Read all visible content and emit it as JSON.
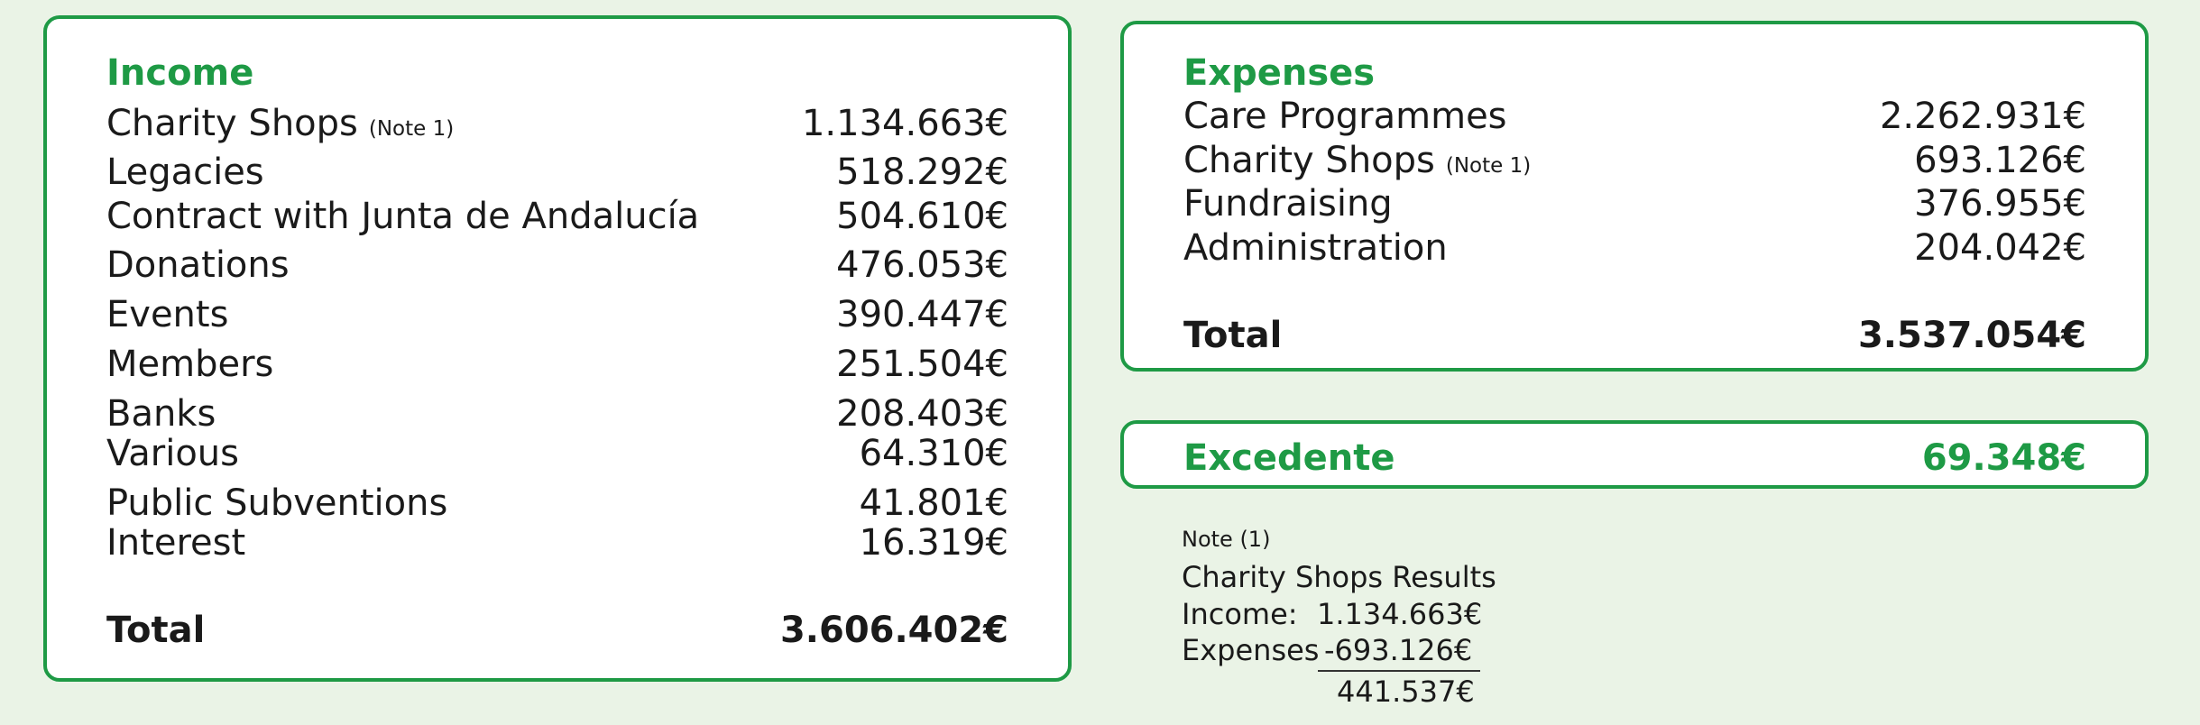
{
  "income": {
    "heading": "Income",
    "items": [
      {
        "label": "Charity Shops",
        "note": "(Note 1)",
        "value": "1.134.663€"
      },
      {
        "label": "Legacies",
        "value": "518.292€"
      },
      {
        "label": "Contract with Junta de Andalucía",
        "value": "504.610€"
      },
      {
        "label": "Donations",
        "value": "476.053€"
      },
      {
        "label": "Events",
        "value": "390.447€"
      },
      {
        "label": "Members",
        "value": "251.504€"
      },
      {
        "label": "Banks",
        "value": "208.403€"
      },
      {
        "label": "Various",
        "value": "64.310€"
      },
      {
        "label": "Public Subventions",
        "value": "41.801€"
      },
      {
        "label": "Interest",
        "value": "16.319€"
      }
    ],
    "total_label": "Total",
    "total_value": "3.606.402€"
  },
  "expenses": {
    "heading": "Expenses",
    "items": [
      {
        "label": "Care Programmes",
        "value": "2.262.931€"
      },
      {
        "label": "Charity Shops",
        "note": "(Note 1)",
        "value": "693.126€"
      },
      {
        "label": "Fundraising",
        "value": "376.955€"
      },
      {
        "label": "Administration",
        "value": "204.042€"
      }
    ],
    "total_label": "Total",
    "total_value": "3.537.054€"
  },
  "surplus": {
    "label": "Excedente",
    "value": "69.348€"
  },
  "note": {
    "title": "Note (1)",
    "heading": "Charity Shops Results",
    "income_label": "Income:",
    "income_value": "1.134.663€",
    "expenses_label": "Expenses",
    "expenses_value": "-693.126€",
    "result_value": "441.537€"
  },
  "colors": {
    "accent": "#1e9a45",
    "background": "#eaf3e6"
  }
}
